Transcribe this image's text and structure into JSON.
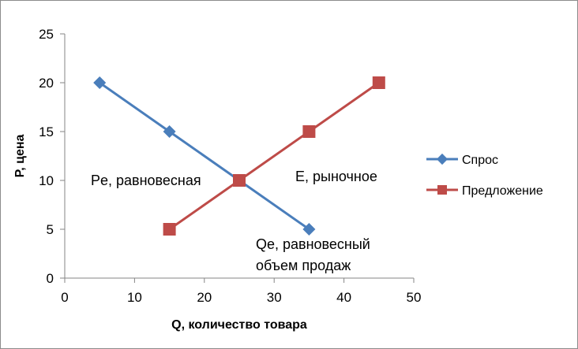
{
  "chart_data": {
    "type": "scatter",
    "xlabel": "Q, количество товара",
    "ylabel": "P, цена",
    "xlim": [
      0,
      50
    ],
    "ylim": [
      0,
      25
    ],
    "x_ticks": [
      0,
      10,
      20,
      30,
      40,
      50
    ],
    "y_ticks": [
      0,
      5,
      10,
      15,
      20,
      25
    ],
    "grid": false,
    "legend": "right",
    "series": [
      {
        "name": "Спрос",
        "color": "#4a7ebb",
        "marker": "diamond",
        "points": [
          [
            5,
            20
          ],
          [
            15,
            15
          ],
          [
            25,
            10
          ],
          [
            35,
            5
          ]
        ]
      },
      {
        "name": "Предложение",
        "color": "#be4b48",
        "marker": "square",
        "points": [
          [
            15,
            5
          ],
          [
            25,
            10
          ],
          [
            35,
            15
          ],
          [
            45,
            20
          ]
        ]
      }
    ],
    "annotations": [
      {
        "text": "Pe, равновесная"
      },
      {
        "text": "E, рыночное"
      },
      {
        "text": "Qe, равновесный"
      },
      {
        "text": "объем продаж"
      }
    ]
  }
}
